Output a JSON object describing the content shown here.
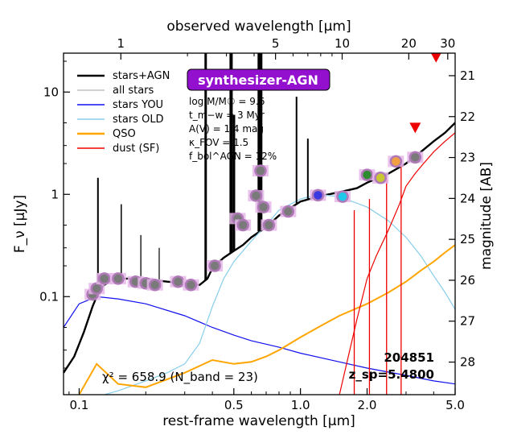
{
  "chart_data": {
    "type": "line",
    "xlabel": "rest-frame wavelength [μm]",
    "ylabel": "F_ν [μJy]",
    "top_xlabel": "observed wavelength [μm]",
    "right_ylabel": "magnitude [AB]",
    "xscale": "log",
    "yscale": "log",
    "xlim": [
      0.085,
      5.0
    ],
    "ylim": [
      0.011,
      24
    ],
    "x_ticks": [
      {
        "value": 0.1,
        "label": "0.1"
      },
      {
        "value": 0.5,
        "label": "0.5"
      },
      {
        "value": 1.0,
        "label": "1.0"
      },
      {
        "value": 2.0,
        "label": "2.0"
      },
      {
        "value": 5.0,
        "label": "5.0"
      }
    ],
    "y_ticks": [
      {
        "value": 0.1,
        "label": "0.1"
      },
      {
        "value": 1,
        "label": "1"
      },
      {
        "value": 10,
        "label": "10"
      }
    ],
    "top_ticks": [
      {
        "value": 1,
        "label": "1"
      },
      {
        "value": 5,
        "label": "5"
      },
      {
        "value": 10,
        "label": "10"
      },
      {
        "value": 20,
        "label": "20"
      },
      {
        "value": 30,
        "label": "30"
      }
    ],
    "right_ticks": [
      {
        "value": 21,
        "label": "21"
      },
      {
        "value": 22,
        "label": "22"
      },
      {
        "value": 23,
        "label": "23"
      },
      {
        "value": 24,
        "label": "24"
      },
      {
        "value": 25,
        "label": "25"
      },
      {
        "value": 26,
        "label": "26"
      },
      {
        "value": 27,
        "label": "27"
      },
      {
        "value": 28,
        "label": "28"
      }
    ],
    "redshift": 5.48,
    "legend": [
      {
        "label": "stars+AGN",
        "color": "#000000"
      },
      {
        "label": "all stars",
        "color": "#c0c0c0"
      },
      {
        "label": "stars YOU",
        "color": "#1010ee"
      },
      {
        "label": "stars OLD",
        "color": "#87ceeb"
      },
      {
        "label": "QSO",
        "color": "#ffa500"
      },
      {
        "label": "dust (SF)",
        "color": "#ee0000"
      }
    ],
    "legend_position": "upper-left",
    "badge": "synthesizer-AGN",
    "params": [
      "log M/M☉ = 9.6",
      "t_m−w = 3 Myr",
      "A(V) = 1.4 mag",
      "κ_FOV = 1.5",
      "f_bol^AGN = 12%"
    ],
    "object_id": "204851",
    "redshift_label": "z_sp=5.4800",
    "chi2_label": "χ² = 658.9 (N_band = 23)",
    "series": [
      {
        "name": "stars+AGN",
        "color": "#000000",
        "x": [
          0.085,
          0.095,
          0.105,
          0.115,
          0.12,
          0.125,
          0.13,
          0.14,
          0.15,
          0.17,
          0.2,
          0.25,
          0.3,
          0.35,
          0.38,
          0.4,
          0.45,
          0.5,
          0.55,
          0.6,
          0.7,
          0.8,
          1.0,
          1.2,
          1.5,
          1.8,
          2.0,
          2.5,
          3.0,
          3.5,
          4.0,
          4.5,
          5.0
        ],
        "y": [
          0.018,
          0.026,
          0.045,
          0.08,
          0.1,
          0.12,
          0.13,
          0.145,
          0.15,
          0.15,
          0.148,
          0.14,
          0.135,
          0.13,
          0.15,
          0.19,
          0.24,
          0.28,
          0.32,
          0.38,
          0.48,
          0.62,
          0.85,
          0.95,
          1.05,
          1.15,
          1.3,
          1.6,
          2.0,
          2.6,
          3.3,
          4.0,
          5.0
        ]
      },
      {
        "name": "stars YOU",
        "color": "#1010ee",
        "x": [
          0.085,
          0.1,
          0.12,
          0.15,
          0.2,
          0.3,
          0.4,
          0.5,
          0.6,
          0.8,
          1.0,
          1.5,
          2.0,
          3.0,
          4.0,
          5.0
        ],
        "y": [
          0.05,
          0.085,
          0.1,
          0.095,
          0.085,
          0.065,
          0.05,
          0.042,
          0.037,
          0.032,
          0.028,
          0.023,
          0.02,
          0.017,
          0.015,
          0.014
        ]
      },
      {
        "name": "stars OLD",
        "color": "#87ceeb",
        "x": [
          0.13,
          0.15,
          0.2,
          0.25,
          0.3,
          0.35,
          0.4,
          0.45,
          0.5,
          0.6,
          0.7,
          0.8,
          1.0,
          1.2,
          1.5,
          2.0,
          2.5,
          3.0,
          3.5,
          4.0,
          4.5,
          5.0
        ],
        "y": [
          0.011,
          0.012,
          0.015,
          0.018,
          0.022,
          0.035,
          0.08,
          0.15,
          0.22,
          0.35,
          0.5,
          0.7,
          0.9,
          1.0,
          0.95,
          0.75,
          0.55,
          0.38,
          0.25,
          0.16,
          0.11,
          0.075
        ]
      },
      {
        "name": "QSO",
        "color": "#ffa500",
        "x": [
          0.1,
          0.12,
          0.15,
          0.2,
          0.3,
          0.4,
          0.5,
          0.6,
          0.7,
          0.8,
          1.0,
          1.2,
          1.5,
          2.0,
          2.5,
          3.0,
          3.5,
          4.0,
          4.5,
          5.0
        ],
        "y": [
          0.011,
          0.022,
          0.014,
          0.013,
          0.018,
          0.024,
          0.022,
          0.023,
          0.026,
          0.03,
          0.04,
          0.05,
          0.065,
          0.085,
          0.11,
          0.14,
          0.18,
          0.22,
          0.27,
          0.32
        ]
      },
      {
        "name": "dust (SF)",
        "color": "#ee0000",
        "x": [
          1.5,
          1.8,
          2.0,
          2.2,
          2.5,
          2.8,
          3.0,
          3.3,
          3.6,
          4.0,
          4.5,
          5.0
        ],
        "y": [
          0.011,
          0.06,
          0.15,
          0.25,
          0.45,
          0.8,
          1.2,
          1.6,
          2.0,
          2.6,
          3.3,
          4.0
        ]
      }
    ],
    "photometry": [
      {
        "x": 0.115,
        "y": 0.105,
        "fill": "#7a7a7a"
      },
      {
        "x": 0.12,
        "y": 0.12,
        "fill": "#7a7a7a"
      },
      {
        "x": 0.13,
        "y": 0.15,
        "fill": "#7a7a7a"
      },
      {
        "x": 0.15,
        "y": 0.15,
        "fill": "#7a7a7a"
      },
      {
        "x": 0.18,
        "y": 0.14,
        "fill": "#7a7a7a"
      },
      {
        "x": 0.2,
        "y": 0.135,
        "fill": "#7a7a7a"
      },
      {
        "x": 0.22,
        "y": 0.13,
        "fill": "#7a7a7a"
      },
      {
        "x": 0.28,
        "y": 0.14,
        "fill": "#7a7a7a"
      },
      {
        "x": 0.32,
        "y": 0.13,
        "fill": "#7a7a7a"
      },
      {
        "x": 0.41,
        "y": 0.2,
        "fill": "#7a7a7a"
      },
      {
        "x": 0.52,
        "y": 0.58,
        "fill": "#7a7a7a"
      },
      {
        "x": 0.55,
        "y": 0.5,
        "fill": "#7a7a7a"
      },
      {
        "x": 0.63,
        "y": 0.97,
        "fill": "#7a7a7a"
      },
      {
        "x": 0.66,
        "y": 1.7,
        "fill": "#7a7a7a"
      },
      {
        "x": 0.68,
        "y": 0.75,
        "fill": "#7a7a7a"
      },
      {
        "x": 0.72,
        "y": 0.5,
        "fill": "#7a7a7a"
      },
      {
        "x": 0.88,
        "y": 0.68,
        "fill": "#7a7a7a"
      },
      {
        "x": 1.2,
        "y": 0.98,
        "fill": "#3a3ae0"
      },
      {
        "x": 1.55,
        "y": 0.95,
        "fill": "#1ec8e8"
      },
      {
        "x": 2.0,
        "y": 1.55,
        "fill": "#2e8b2e"
      },
      {
        "x": 2.3,
        "y": 1.45,
        "fill": "#c8c832"
      },
      {
        "x": 2.7,
        "y": 2.1,
        "fill": "#f0a040"
      },
      {
        "x": 3.3,
        "y": 2.3,
        "fill": "#7a7a7a"
      }
    ],
    "upper_limits": [
      {
        "x": 3.3,
        "y": 4.5
      },
      {
        "x": 4.1,
        "y": 22
      }
    ]
  }
}
